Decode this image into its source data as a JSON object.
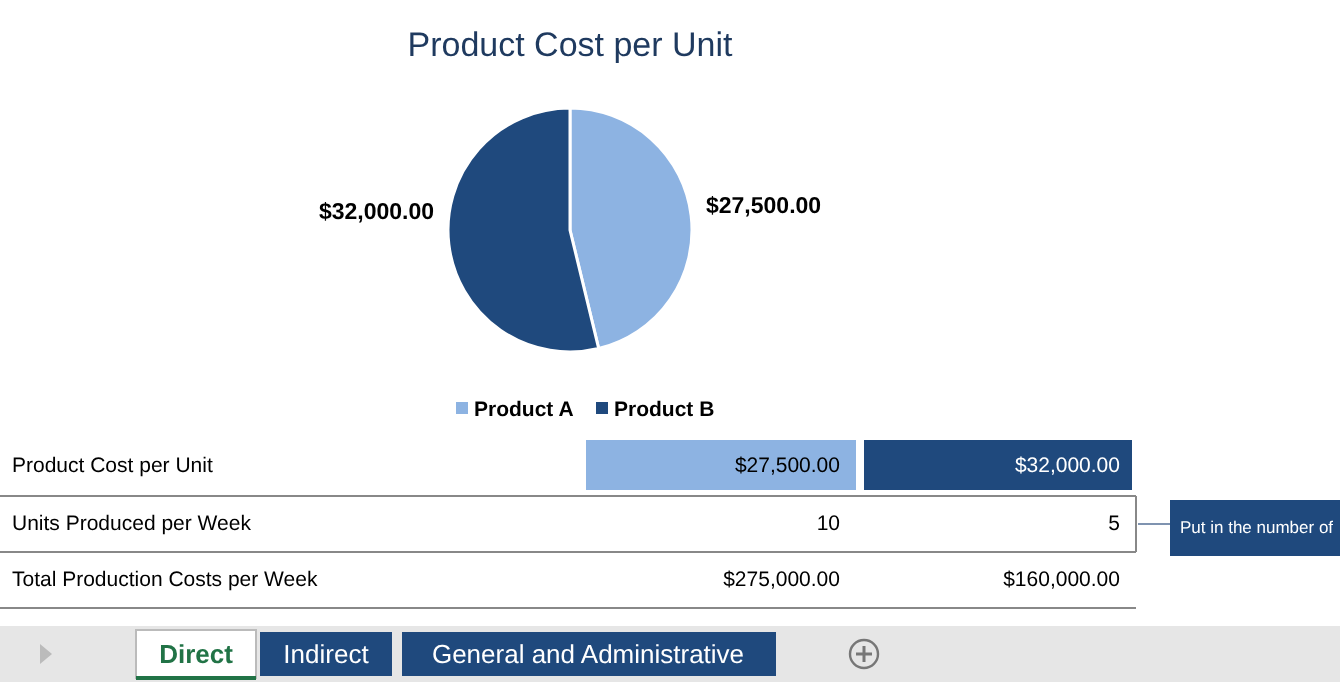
{
  "chart_data": [
    {
      "type": "pie",
      "title": "Product Cost per Unit",
      "categories": [
        "Product A",
        "Product B"
      ],
      "values": [
        27500,
        32000
      ],
      "colors": [
        "#8db3e2",
        "#1f497d"
      ],
      "value_labels": [
        "$27,500.00",
        "$32,000.00"
      ],
      "legend": "bottom"
    },
    {
      "type": "other",
      "annotations": [
        "Product Cost per Unit",
        "$27,500.00",
        "$32,000.00",
        "Units Produced per Week",
        "10",
        "5",
        "Total Production Costs per Week",
        "$275,000.00",
        "$160,000.00",
        "Put in the number of",
        "Direct",
        "Indirect",
        "General and Administrative"
      ]
    }
  ]
}
